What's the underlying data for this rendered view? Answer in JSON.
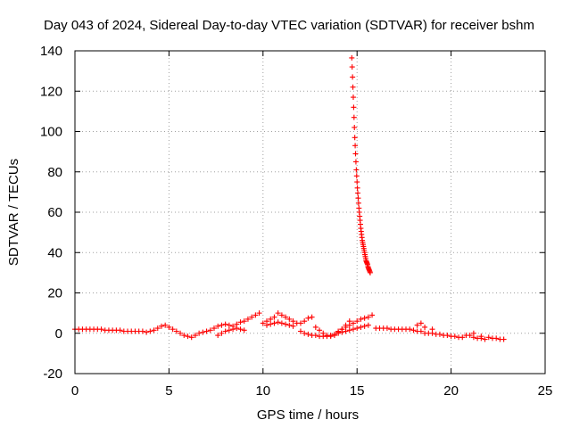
{
  "chart_data": {
    "type": "scatter",
    "title": "Day 043 of 2024, Sidereal Day-to-day VTEC variation (SDTVAR) for receiver bshm",
    "xlabel": "GPS time / hours",
    "ylabel": "SDTVAR / TECUs",
    "xlim": [
      0,
      25
    ],
    "ylim": [
      -20,
      140
    ],
    "xticks": [
      0,
      5,
      10,
      15,
      20,
      25
    ],
    "yticks": [
      -20,
      0,
      20,
      40,
      60,
      80,
      100,
      120,
      140
    ],
    "grid": true,
    "marker": "+",
    "color": "#ff0000",
    "series": [
      {
        "name": "SDTVAR",
        "points": [
          [
            0.0,
            2
          ],
          [
            0.2,
            2
          ],
          [
            0.4,
            2
          ],
          [
            0.6,
            2
          ],
          [
            0.8,
            2
          ],
          [
            1.0,
            2
          ],
          [
            1.2,
            2
          ],
          [
            1.4,
            2
          ],
          [
            1.6,
            1.5
          ],
          [
            1.8,
            1.5
          ],
          [
            2.0,
            1.5
          ],
          [
            2.2,
            1.5
          ],
          [
            2.4,
            1.5
          ],
          [
            2.6,
            1
          ],
          [
            2.8,
            1
          ],
          [
            3.0,
            1
          ],
          [
            3.2,
            1
          ],
          [
            3.4,
            1
          ],
          [
            3.6,
            1
          ],
          [
            3.8,
            0.5
          ],
          [
            4.0,
            1
          ],
          [
            4.2,
            1.5
          ],
          [
            4.4,
            2.5
          ],
          [
            4.6,
            3.5
          ],
          [
            4.8,
            4
          ],
          [
            5.0,
            3
          ],
          [
            5.2,
            2
          ],
          [
            5.4,
            1
          ],
          [
            5.6,
            0
          ],
          [
            5.8,
            -1
          ],
          [
            6.0,
            -1.5
          ],
          [
            6.2,
            -2
          ],
          [
            6.4,
            -1
          ],
          [
            6.6,
            0
          ],
          [
            6.8,
            0.5
          ],
          [
            7.0,
            1
          ],
          [
            7.2,
            1.5
          ],
          [
            7.4,
            2.5
          ],
          [
            7.6,
            3.5
          ],
          [
            7.8,
            4
          ],
          [
            8.0,
            4.5
          ],
          [
            8.2,
            4
          ],
          [
            8.4,
            3.5
          ],
          [
            8.6,
            4.5
          ],
          [
            8.8,
            5.5
          ],
          [
            9.0,
            6
          ],
          [
            9.2,
            7
          ],
          [
            9.4,
            8
          ],
          [
            9.6,
            9
          ],
          [
            9.8,
            10
          ],
          [
            7.6,
            -1
          ],
          [
            7.8,
            0
          ],
          [
            8.0,
            1
          ],
          [
            8.2,
            1.5
          ],
          [
            8.4,
            2
          ],
          [
            8.6,
            2.5
          ],
          [
            8.8,
            2
          ],
          [
            9.0,
            1.5
          ],
          [
            10.0,
            5
          ],
          [
            10.2,
            6
          ],
          [
            10.4,
            7
          ],
          [
            10.6,
            8
          ],
          [
            10.8,
            10
          ],
          [
            11.0,
            9
          ],
          [
            11.2,
            8
          ],
          [
            11.4,
            7
          ],
          [
            11.6,
            6
          ],
          [
            11.8,
            5
          ],
          [
            10.2,
            4
          ],
          [
            10.4,
            4.5
          ],
          [
            10.6,
            5
          ],
          [
            10.8,
            5.5
          ],
          [
            11.0,
            5
          ],
          [
            11.2,
            4.5
          ],
          [
            11.4,
            4
          ],
          [
            11.6,
            3.5
          ],
          [
            12.0,
            5
          ],
          [
            12.2,
            6
          ],
          [
            12.4,
            7.5
          ],
          [
            12.6,
            8
          ],
          [
            12.0,
            1
          ],
          [
            12.2,
            0
          ],
          [
            12.4,
            -0.5
          ],
          [
            12.6,
            -1
          ],
          [
            12.8,
            -1
          ],
          [
            13.0,
            -1.5
          ],
          [
            13.2,
            -1.5
          ],
          [
            13.4,
            -1.5
          ],
          [
            13.6,
            -1
          ],
          [
            13.8,
            -0.5
          ],
          [
            12.8,
            3
          ],
          [
            13.0,
            1.5
          ],
          [
            13.2,
            0
          ],
          [
            13.4,
            -1
          ],
          [
            13.6,
            -1.5
          ],
          [
            13.8,
            -1
          ],
          [
            14.0,
            0.5
          ],
          [
            14.2,
            2
          ],
          [
            14.4,
            4
          ],
          [
            14.6,
            6
          ],
          [
            14.0,
            1
          ],
          [
            14.2,
            2
          ],
          [
            14.4,
            3
          ],
          [
            14.6,
            4
          ],
          [
            14.8,
            5
          ],
          [
            15.0,
            6
          ],
          [
            15.2,
            7
          ],
          [
            15.4,
            7.5
          ],
          [
            15.6,
            8
          ],
          [
            15.8,
            9
          ],
          [
            14.0,
            0
          ],
          [
            14.2,
            0.5
          ],
          [
            14.4,
            1
          ],
          [
            14.6,
            1.5
          ],
          [
            14.8,
            2
          ],
          [
            15.0,
            2.5
          ],
          [
            15.2,
            3
          ],
          [
            15.4,
            3.5
          ],
          [
            15.6,
            4
          ],
          [
            16.0,
            2.5
          ],
          [
            16.2,
            2.5
          ],
          [
            16.4,
            2.5
          ],
          [
            16.6,
            2.5
          ],
          [
            16.8,
            2
          ],
          [
            17.0,
            2
          ],
          [
            17.2,
            2
          ],
          [
            17.4,
            2
          ],
          [
            17.6,
            2
          ],
          [
            17.8,
            2
          ],
          [
            18.0,
            1.5
          ],
          [
            18.2,
            1
          ],
          [
            18.4,
            1
          ],
          [
            18.6,
            0
          ],
          [
            18.8,
            0
          ],
          [
            19.0,
            0
          ],
          [
            19.2,
            -0.5
          ],
          [
            19.4,
            -0.5
          ],
          [
            19.6,
            -1
          ],
          [
            19.8,
            -1
          ],
          [
            20.0,
            -1.5
          ],
          [
            20.2,
            -1.5
          ],
          [
            20.4,
            -2
          ],
          [
            20.6,
            -2
          ],
          [
            20.8,
            -1
          ],
          [
            21.0,
            -1
          ],
          [
            21.2,
            -2
          ],
          [
            21.4,
            -2.5
          ],
          [
            21.6,
            -2.5
          ],
          [
            21.8,
            -3
          ],
          [
            22.0,
            -2
          ],
          [
            22.2,
            -2.5
          ],
          [
            22.4,
            -2.5
          ],
          [
            22.6,
            -3
          ],
          [
            22.8,
            -3
          ],
          [
            18.2,
            4
          ],
          [
            18.4,
            5
          ],
          [
            18.6,
            3
          ],
          [
            19.0,
            2
          ],
          [
            21.2,
            0
          ],
          [
            21.6,
            -1.5
          ],
          [
            14.72,
            136.5
          ],
          [
            14.74,
            132
          ],
          [
            14.76,
            127
          ],
          [
            14.78,
            122
          ],
          [
            14.8,
            117
          ],
          [
            14.82,
            112
          ],
          [
            14.84,
            107
          ],
          [
            14.86,
            102
          ],
          [
            14.88,
            97
          ],
          [
            14.9,
            93
          ],
          [
            14.92,
            89
          ],
          [
            14.94,
            85
          ],
          [
            14.96,
            81
          ],
          [
            14.98,
            78
          ],
          [
            15.0,
            75
          ],
          [
            15.02,
            72
          ],
          [
            15.04,
            69.5
          ],
          [
            15.06,
            67
          ],
          [
            15.08,
            64.5
          ],
          [
            15.1,
            62
          ],
          [
            15.12,
            60
          ],
          [
            15.14,
            58
          ],
          [
            15.16,
            56
          ],
          [
            15.18,
            54
          ],
          [
            15.2,
            52
          ],
          [
            15.22,
            50.5
          ],
          [
            15.24,
            49
          ],
          [
            15.26,
            47.5
          ],
          [
            15.28,
            46
          ],
          [
            15.3,
            45
          ],
          [
            15.32,
            44
          ],
          [
            15.34,
            43
          ],
          [
            15.36,
            42
          ],
          [
            15.38,
            41
          ],
          [
            15.4,
            40
          ],
          [
            15.42,
            39
          ],
          [
            15.44,
            38
          ],
          [
            15.46,
            37
          ],
          [
            15.48,
            36
          ],
          [
            15.5,
            35.5
          ],
          [
            15.52,
            35
          ],
          [
            15.54,
            34.5
          ],
          [
            15.56,
            34
          ],
          [
            15.58,
            33
          ],
          [
            15.6,
            32.5
          ],
          [
            15.62,
            32
          ],
          [
            15.64,
            31.5
          ],
          [
            15.66,
            31
          ],
          [
            15.68,
            30.5
          ],
          [
            15.7,
            30
          ]
        ]
      }
    ]
  }
}
